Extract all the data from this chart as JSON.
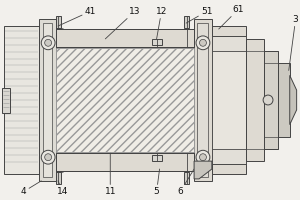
{
  "bg_color": "#f2f0ec",
  "line_color": "#444444",
  "lw": 0.7,
  "figsize": [
    3.0,
    2.0
  ],
  "dpi": 100
}
